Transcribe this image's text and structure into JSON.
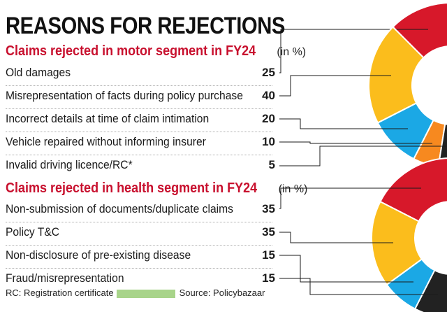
{
  "title": "REASONS FOR REJECTIONS",
  "footer": {
    "note": "RC: Registration certificate",
    "source": "Source: Policybazaar"
  },
  "chart_data": [
    {
      "type": "pie",
      "title": "Claims rejected in motor segment in FY24",
      "unit": "(in %)",
      "categories": [
        "Old damages",
        "Misrepresentation of facts during policy purchase",
        "Incorrect details at time of claim intimation",
        "Vehicle repaired without informing insurer",
        "Invalid driving licence/RC*"
      ],
      "values": [
        25,
        40,
        20,
        10,
        5
      ],
      "colors": [
        "#d7182a",
        "#fbbd1c",
        "#1ba8e5",
        "#f7891f",
        "#222222"
      ]
    },
    {
      "type": "pie",
      "title": "Claims rejected in health segment in FY24",
      "unit": "(in %)",
      "categories": [
        "Non-submission of documents/duplicate claims",
        "Policy T&C",
        "Non-disclosure of pre-existing disease",
        "Fraud/misrepresentation"
      ],
      "values": [
        35,
        35,
        15,
        15
      ],
      "colors": [
        "#d7182a",
        "#fbbd1c",
        "#1ba8e5",
        "#222222"
      ]
    }
  ]
}
